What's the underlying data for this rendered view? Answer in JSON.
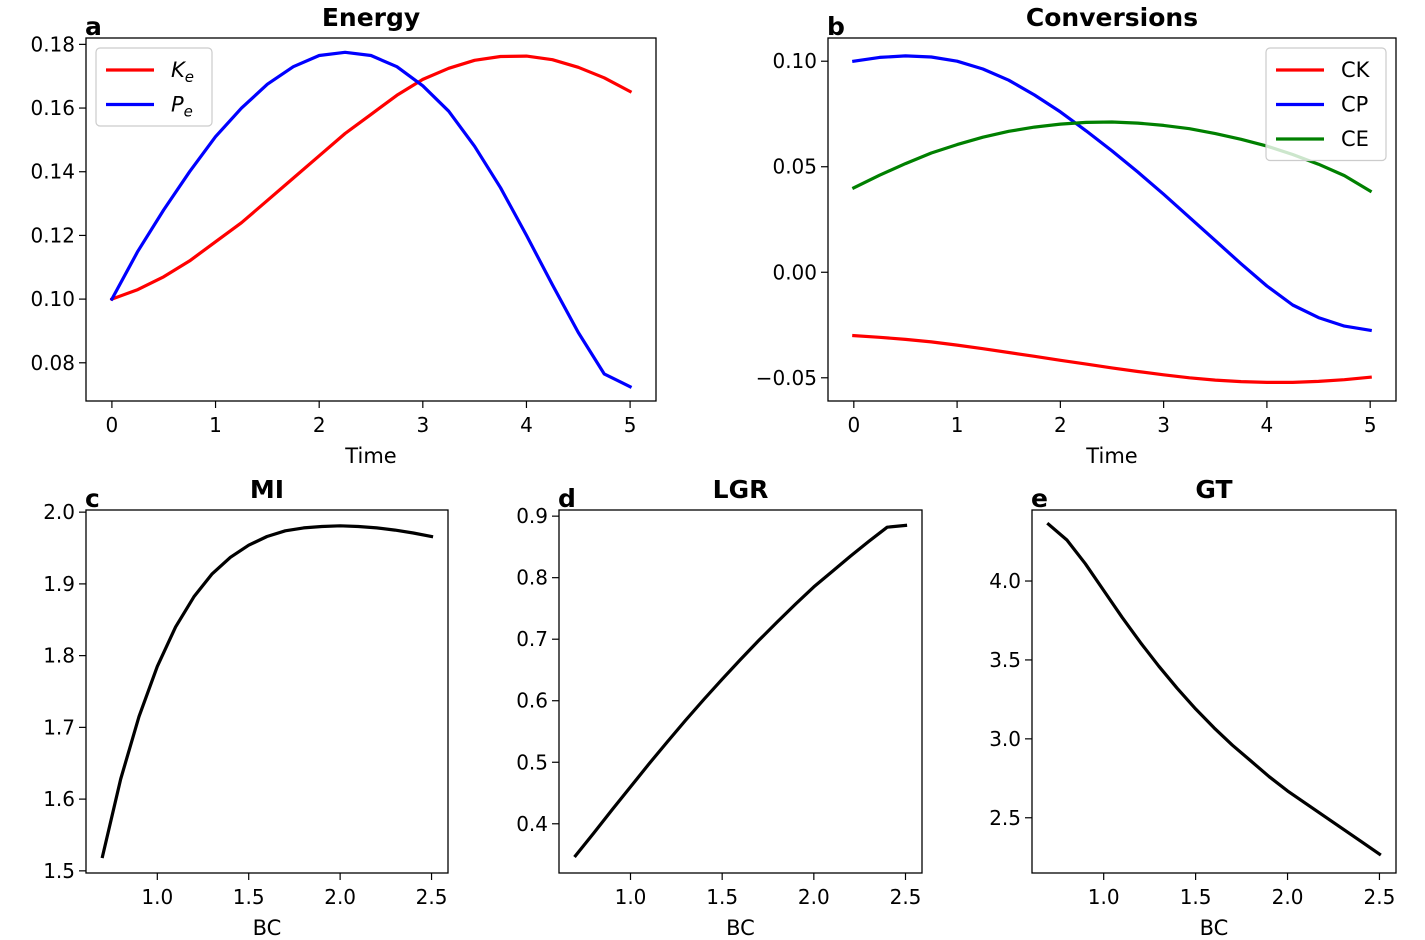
{
  "chart_data": [
    {
      "panel": "a",
      "type": "line",
      "title": "Energy",
      "xlabel": "Time",
      "ylabel": "",
      "xlim": [
        -0.25,
        5.25
      ],
      "ylim": [
        0.068,
        0.182
      ],
      "xticks": [
        0,
        1,
        2,
        3,
        4,
        5
      ],
      "xtick_labels": [
        "0",
        "1",
        "2",
        "3",
        "4",
        "5"
      ],
      "yticks": [
        0.08,
        0.1,
        0.12,
        0.14,
        0.16,
        0.18
      ],
      "ytick_labels": [
        "0.08",
        "0.10",
        "0.12",
        "0.14",
        "0.16",
        "0.18"
      ],
      "grid": false,
      "legend": "top-left",
      "series": [
        {
          "name": "K",
          "sub": "e",
          "color": "#ff0000",
          "x": [
            0,
            0.25,
            0.5,
            0.75,
            1,
            1.25,
            1.5,
            1.75,
            2,
            2.25,
            2.5,
            2.75,
            3,
            3.25,
            3.5,
            3.75,
            4,
            4.25,
            4.5,
            4.75,
            5
          ],
          "y": [
            0.1,
            0.103,
            0.107,
            0.112,
            0.118,
            0.124,
            0.131,
            0.138,
            0.145,
            0.152,
            0.158,
            0.164,
            0.169,
            0.1725,
            0.175,
            0.1762,
            0.1763,
            0.1752,
            0.1728,
            0.1695,
            0.1652
          ]
        },
        {
          "name": "P",
          "sub": "e",
          "color": "#0000ff",
          "x": [
            0,
            0.25,
            0.5,
            0.75,
            1,
            1.25,
            1.5,
            1.75,
            2,
            2.25,
            2.5,
            2.75,
            3,
            3.25,
            3.5,
            3.75,
            4,
            4.25,
            4.5,
            4.75,
            5
          ],
          "y": [
            0.1,
            0.115,
            0.128,
            0.14,
            0.151,
            0.16,
            0.1675,
            0.173,
            0.1765,
            0.1775,
            0.1765,
            0.173,
            0.167,
            0.159,
            0.148,
            0.135,
            0.12,
            0.1045,
            0.0895,
            0.0765,
            0.0725
          ]
        }
      ]
    },
    {
      "panel": "b",
      "type": "line",
      "title": "Conversions",
      "xlabel": "Time",
      "ylabel": "",
      "xlim": [
        -0.25,
        5.25
      ],
      "ylim": [
        -0.061,
        0.111
      ],
      "xticks": [
        0,
        1,
        2,
        3,
        4,
        5
      ],
      "xtick_labels": [
        "0",
        "1",
        "2",
        "3",
        "4",
        "5"
      ],
      "yticks": [
        -0.05,
        0.0,
        0.05,
        0.1
      ],
      "ytick_labels": [
        "−0.05",
        "0.00",
        "0.05",
        "0.10"
      ],
      "grid": false,
      "legend": "top-right",
      "series": [
        {
          "name": "CK",
          "color": "#ff0000",
          "x": [
            0,
            0.25,
            0.5,
            0.75,
            1,
            1.25,
            1.5,
            1.75,
            2,
            2.25,
            2.5,
            2.75,
            3,
            3.25,
            3.5,
            3.75,
            4,
            4.25,
            4.5,
            4.75,
            5
          ],
          "y": [
            -0.03,
            -0.0308,
            -0.0318,
            -0.033,
            -0.0345,
            -0.0362,
            -0.038,
            -0.0398,
            -0.0417,
            -0.0435,
            -0.0453,
            -0.047,
            -0.0486,
            -0.05,
            -0.0511,
            -0.0518,
            -0.0522,
            -0.0522,
            -0.0517,
            -0.0509,
            -0.0497
          ]
        },
        {
          "name": "CP",
          "color": "#0000ff",
          "x": [
            0,
            0.25,
            0.5,
            0.75,
            1,
            1.25,
            1.5,
            1.75,
            2,
            2.25,
            2.5,
            2.75,
            3,
            3.25,
            3.5,
            3.75,
            4,
            4.25,
            4.5,
            4.75,
            5
          ],
          "y": [
            0.1,
            0.1018,
            0.1025,
            0.102,
            0.1,
            0.0963,
            0.091,
            0.084,
            0.076,
            0.067,
            0.0575,
            0.0475,
            0.037,
            0.026,
            0.015,
            0.004,
            -0.0065,
            -0.0155,
            -0.0215,
            -0.0255,
            -0.0275
          ]
        },
        {
          "name": "CE",
          "color": "#008000",
          "x": [
            0,
            0.25,
            0.5,
            0.75,
            1,
            1.25,
            1.5,
            1.75,
            2,
            2.25,
            2.5,
            2.75,
            3,
            3.25,
            3.5,
            3.75,
            4,
            4.25,
            4.5,
            4.75,
            5
          ],
          "y": [
            0.04,
            0.046,
            0.0515,
            0.0565,
            0.0605,
            0.064,
            0.0668,
            0.0688,
            0.0702,
            0.071,
            0.0712,
            0.0707,
            0.0696,
            0.068,
            0.0657,
            0.063,
            0.0598,
            0.0558,
            0.0512,
            0.0458,
            0.0385
          ]
        }
      ]
    },
    {
      "panel": "c",
      "type": "line",
      "title": "MI",
      "xlabel": "BC",
      "ylabel": "",
      "xlim": [
        0.61,
        2.59
      ],
      "ylim": [
        1.497,
        2.003
      ],
      "xticks": [
        1.0,
        1.5,
        2.0,
        2.5
      ],
      "xtick_labels": [
        "1.0",
        "1.5",
        "2.0",
        "2.5"
      ],
      "yticks": [
        1.5,
        1.6,
        1.7,
        1.8,
        1.9,
        2.0
      ],
      "ytick_labels": [
        "1.5",
        "1.6",
        "1.7",
        "1.8",
        "1.9",
        "2.0"
      ],
      "grid": false,
      "series": [
        {
          "name": "",
          "color": "#000000",
          "x": [
            0.7,
            0.8,
            0.9,
            1.0,
            1.1,
            1.2,
            1.3,
            1.4,
            1.5,
            1.6,
            1.7,
            1.8,
            1.9,
            2.0,
            2.1,
            2.2,
            2.3,
            2.4,
            2.5
          ],
          "y": [
            1.52,
            1.628,
            1.715,
            1.785,
            1.84,
            1.882,
            1.914,
            1.937,
            1.954,
            1.966,
            1.974,
            1.978,
            1.98,
            1.981,
            1.98,
            1.978,
            1.975,
            1.971,
            1.966
          ]
        }
      ]
    },
    {
      "panel": "d",
      "type": "line",
      "title": "LGR",
      "xlabel": "BC",
      "ylabel": "",
      "xlim": [
        0.61,
        2.59
      ],
      "ylim": [
        0.32,
        0.91
      ],
      "xticks": [
        1.0,
        1.5,
        2.0,
        2.5
      ],
      "xtick_labels": [
        "1.0",
        "1.5",
        "2.0",
        "2.5"
      ],
      "yticks": [
        0.4,
        0.5,
        0.6,
        0.7,
        0.8,
        0.9
      ],
      "ytick_labels": [
        "0.4",
        "0.5",
        "0.6",
        "0.7",
        "0.8",
        "0.9"
      ],
      "grid": false,
      "series": [
        {
          "name": "",
          "color": "#000000",
          "x": [
            0.7,
            0.8,
            0.9,
            1.0,
            1.1,
            1.2,
            1.3,
            1.4,
            1.5,
            1.6,
            1.7,
            1.8,
            1.9,
            2.0,
            2.1,
            2.2,
            2.3,
            2.4,
            2.5
          ],
          "y": [
            0.348,
            0.385,
            0.423,
            0.46,
            0.497,
            0.533,
            0.568,
            0.602,
            0.635,
            0.667,
            0.698,
            0.728,
            0.757,
            0.785,
            0.81,
            0.835,
            0.859,
            0.882,
            0.885
          ]
        }
      ]
    },
    {
      "panel": "e",
      "type": "line",
      "title": "GT",
      "xlabel": "BC",
      "ylabel": "",
      "xlim": [
        0.61,
        2.59
      ],
      "ylim": [
        2.15,
        4.45
      ],
      "xticks": [
        1.0,
        1.5,
        2.0,
        2.5
      ],
      "xtick_labels": [
        "1.0",
        "1.5",
        "2.0",
        "2.5"
      ],
      "yticks": [
        2.5,
        3.0,
        3.5,
        4.0
      ],
      "ytick_labels": [
        "2.5",
        "3.0",
        "3.5",
        "4.0"
      ],
      "grid": false,
      "series": [
        {
          "name": "",
          "color": "#000000",
          "x": [
            0.7,
            0.8,
            0.9,
            1.0,
            1.1,
            1.2,
            1.3,
            1.4,
            1.5,
            1.6,
            1.7,
            1.8,
            1.9,
            2.0,
            2.1,
            2.2,
            2.3,
            2.4,
            2.5
          ],
          "y": [
            4.36,
            4.26,
            4.11,
            3.94,
            3.77,
            3.61,
            3.46,
            3.32,
            3.19,
            3.07,
            2.96,
            2.86,
            2.76,
            2.67,
            2.59,
            2.51,
            2.43,
            2.35,
            2.27
          ]
        }
      ]
    }
  ]
}
